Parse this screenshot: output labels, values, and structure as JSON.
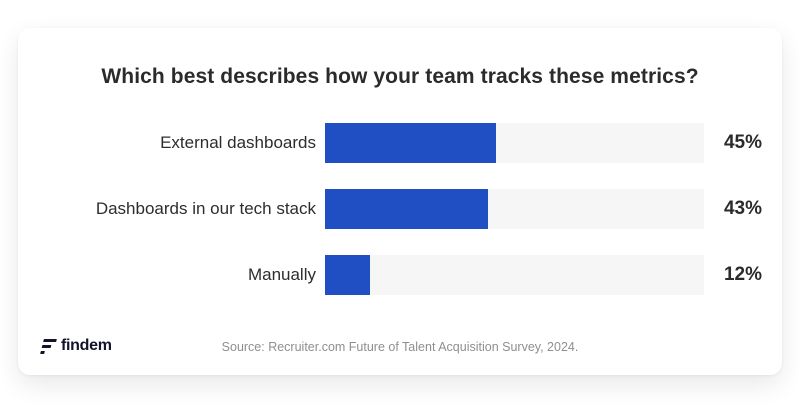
{
  "chart_data": {
    "type": "bar",
    "orientation": "horizontal",
    "title": "Which best describes how your team tracks these metrics?",
    "categories": [
      "External dashboards",
      "Dashboards in our tech stack",
      "Manually"
    ],
    "values": [
      45,
      43,
      12
    ],
    "value_labels": [
      "45%",
      "43%",
      "12%"
    ],
    "xlim": [
      0,
      100
    ],
    "grid": false,
    "legend": "none",
    "bar_color": "#1f4fc2",
    "track_color": "#f6f6f7"
  },
  "footer": {
    "logo_text": "findem",
    "source": "Source: Recruiter.com Future of Talent Acquisition Survey, 2024."
  }
}
